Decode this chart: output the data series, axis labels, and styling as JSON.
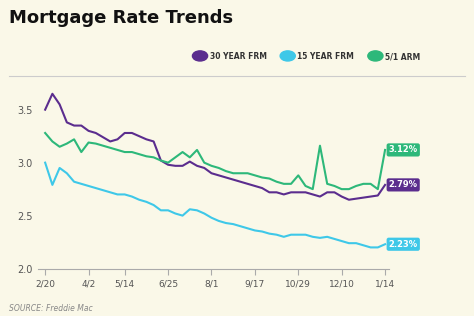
{
  "title": "Mortgage Rate Trends",
  "background_color": "#faf8e8",
  "source_text": "SOURCE: Freddie Mac",
  "x_labels": [
    "2/20",
    "4/2",
    "5/14",
    "6/25",
    "8/1",
    "9/17",
    "10/29",
    "12/10",
    "1/14"
  ],
  "x_tick_positions": [
    0,
    6,
    11,
    17,
    23,
    29,
    35,
    41,
    47
  ],
  "ylim": [
    2.0,
    3.7
  ],
  "yticks": [
    2.0,
    2.5,
    3.0,
    3.5
  ],
  "colors": {
    "30yr": "#5b2d8e",
    "15yr": "#3ec8e8",
    "arm": "#2db87a"
  },
  "legend": {
    "labels": [
      "30 YEAR FRM",
      "15 YEAR FRM",
      "5/1 ARM"
    ],
    "colors": [
      "#5b2d8e",
      "#3ec8e8",
      "#2db87a"
    ]
  },
  "annotations": [
    {
      "text": "3.12%",
      "color": "#2db87a",
      "text_color": "white"
    },
    {
      "text": "2.79%",
      "color": "#5b2d8e",
      "text_color": "white"
    },
    {
      "text": "2.23%",
      "color": "#3ec8e8",
      "text_color": "white"
    }
  ],
  "y30": [
    3.5,
    3.65,
    3.55,
    3.38,
    3.35,
    3.35,
    3.3,
    3.28,
    3.24,
    3.2,
    3.22,
    3.28,
    3.28,
    3.25,
    3.22,
    3.2,
    3.02,
    2.98,
    2.97,
    2.97,
    3.01,
    2.97,
    2.95,
    2.9,
    2.88,
    2.86,
    2.84,
    2.82,
    2.8,
    2.78,
    2.76,
    2.72,
    2.72,
    2.7,
    2.72,
    2.72,
    2.72,
    2.7,
    2.68,
    2.72,
    2.72,
    2.68,
    2.65,
    2.66,
    2.67,
    2.68,
    2.69,
    2.79
  ],
  "y15": [
    3.0,
    2.79,
    2.95,
    2.9,
    2.82,
    2.8,
    2.78,
    2.76,
    2.74,
    2.72,
    2.7,
    2.7,
    2.68,
    2.65,
    2.63,
    2.6,
    2.55,
    2.55,
    2.52,
    2.5,
    2.56,
    2.55,
    2.52,
    2.48,
    2.45,
    2.43,
    2.42,
    2.4,
    2.38,
    2.36,
    2.35,
    2.33,
    2.32,
    2.3,
    2.32,
    2.32,
    2.32,
    2.3,
    2.29,
    2.3,
    2.28,
    2.26,
    2.24,
    2.24,
    2.22,
    2.2,
    2.2,
    2.23
  ],
  "yarm": [
    3.28,
    3.2,
    3.15,
    3.18,
    3.22,
    3.1,
    3.19,
    3.18,
    3.16,
    3.14,
    3.12,
    3.1,
    3.1,
    3.08,
    3.06,
    3.05,
    3.02,
    3.0,
    3.05,
    3.1,
    3.05,
    3.12,
    3.0,
    2.97,
    2.95,
    2.92,
    2.9,
    2.9,
    2.9,
    2.88,
    2.86,
    2.85,
    2.82,
    2.8,
    2.8,
    2.88,
    2.78,
    2.75,
    3.16,
    2.8,
    2.78,
    2.75,
    2.75,
    2.78,
    2.8,
    2.8,
    2.75,
    3.12
  ]
}
